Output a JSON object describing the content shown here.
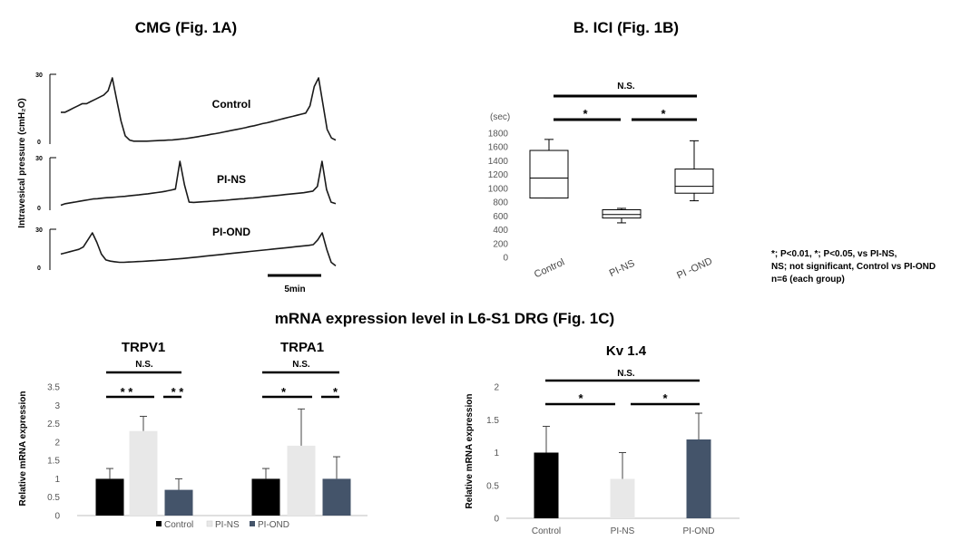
{
  "page_title": "mRNA expression level in  L6-S1 DRG (Fig. 1C)",
  "chart_data": [
    {
      "id": "cmg",
      "type": "line",
      "title": "CMG (Fig. 1A)",
      "ylabel": "Intravesical pressure (cmH₂O)",
      "scale_label": "5min",
      "series": [
        {
          "name": "Control",
          "ymax_label": "30",
          "ymin_label": "0",
          "y": [
            14,
            14,
            15,
            16,
            17,
            18,
            18,
            19,
            20,
            21,
            22,
            24,
            30,
            20,
            10,
            3,
            1,
            0.5,
            0.5,
            0.5,
            0.5,
            0.6,
            0.7,
            0.8,
            0.9,
            1,
            1.1,
            1.3,
            1.5,
            1.7,
            2,
            2.3,
            2.6,
            3,
            3.3,
            3.7,
            4,
            4.4,
            4.8,
            5.2,
            5.6,
            6,
            6.4,
            6.8,
            7.3,
            7.7,
            8.2,
            8.7,
            9.1,
            9.6,
            10.1,
            10.6,
            11.1,
            11.6,
            12.1,
            12.6,
            13.1,
            13.6,
            17,
            26,
            30,
            18,
            6,
            2,
            1
          ]
        },
        {
          "name": "PI-NS",
          "ymax_label": "30",
          "ymin_label": "0",
          "y": [
            2,
            3,
            3.5,
            4,
            4.5,
            5,
            5.5,
            6,
            6.2,
            6.5,
            6.8,
            7,
            7.2,
            7.5,
            7.7,
            8,
            8.3,
            8.6,
            9,
            9.3,
            9.7,
            10.1,
            10.5,
            11,
            11.6,
            12.3,
            30,
            15,
            4,
            3.8,
            4,
            4.2,
            4.4,
            4.6,
            4.8,
            5,
            5.2,
            5.5,
            5.7,
            6,
            6.2,
            6.5,
            6.7,
            7,
            7.3,
            7.6,
            7.9,
            8.2,
            8.5,
            8.8,
            9.1,
            9.4,
            9.7,
            10,
            10.5,
            11,
            14,
            30,
            12,
            4,
            3
          ]
        },
        {
          "name": "PI-OND",
          "ymax_label": "30",
          "ymin_label": "0",
          "y": [
            12,
            13,
            14,
            15,
            16,
            18,
            24,
            30,
            22,
            12,
            7,
            6,
            5.5,
            5,
            5,
            5.2,
            5.4,
            5.6,
            5.8,
            6,
            6.3,
            6.5,
            6.8,
            7,
            7.3,
            7.6,
            7.9,
            8.2,
            8.6,
            9,
            9.4,
            9.8,
            10.2,
            10.6,
            11,
            11.4,
            11.8,
            12.2,
            12.6,
            13,
            13.4,
            13.8,
            14.2,
            14.6,
            15,
            15.4,
            15.8,
            16.2,
            16.6,
            17,
            17.4,
            17.8,
            18.2,
            18.6,
            19,
            19.4,
            20,
            24,
            30,
            16,
            5,
            2
          ]
        }
      ]
    },
    {
      "id": "ici",
      "type": "boxplot",
      "title": "B. ICI (Fig. 1B)",
      "ylabel": "(sec)",
      "ylim": [
        0,
        1800
      ],
      "yticks": [
        "0",
        "200",
        "400",
        "600",
        "800",
        "1000",
        "1200",
        "1400",
        "1600",
        "1800"
      ],
      "categories": [
        "Control",
        "PI-NS",
        "PI -OND"
      ],
      "boxes": [
        {
          "min": 860,
          "q1": 860,
          "median": 1150,
          "q3": 1550,
          "max": 1710
        },
        {
          "min": 500,
          "q1": 570,
          "median": 620,
          "q3": 690,
          "max": 710
        },
        {
          "min": 820,
          "q1": 930,
          "median": 1030,
          "q3": 1280,
          "max": 1690
        }
      ],
      "significance": [
        {
          "label": "N.S."
        },
        {
          "label": "*"
        },
        {
          "label": "*"
        }
      ],
      "notes": [
        "*; P<0.01, *; P<0.05, vs PI-NS,",
        "NS; not significant, Control vs PI-OND",
        "n=6 (each group)"
      ]
    },
    {
      "id": "trp",
      "type": "bar",
      "ylabel": "Relative mRNA expression",
      "ylim": [
        0,
        3.5
      ],
      "yticks": [
        "0",
        "0.5",
        "1",
        "1.5",
        "2",
        "2.5",
        "3",
        "3.5"
      ],
      "groups": [
        {
          "name": "TRPV1",
          "values": [
            1.0,
            2.3,
            0.7
          ],
          "errors": [
            0.28,
            0.4,
            0.3
          ],
          "significance": [
            {
              "label": "N.S."
            },
            {
              "label": "* *"
            },
            {
              "label": "* *"
            }
          ]
        },
        {
          "name": "TRPA1",
          "values": [
            1.0,
            1.9,
            1.0
          ],
          "errors": [
            0.28,
            1.0,
            0.6
          ],
          "significance": [
            {
              "label": "N.S."
            },
            {
              "label": "*"
            },
            {
              "label": "*"
            }
          ]
        }
      ],
      "legend": [
        "Control",
        "PI-NS",
        "PI-OND"
      ]
    },
    {
      "id": "kv",
      "type": "bar",
      "title": "Kv 1.4",
      "ylabel": "Relative mRNA expression",
      "ylim": [
        0,
        2
      ],
      "yticks": [
        "0",
        "0.5",
        "1",
        "1.5",
        "2"
      ],
      "categories": [
        "Control",
        "PI-NS",
        "PI-OND"
      ],
      "values": [
        1.0,
        0.6,
        1.2
      ],
      "errors": [
        0.4,
        0.4,
        0.4
      ],
      "significance": [
        {
          "label": "N.S."
        },
        {
          "label": "*"
        },
        {
          "label": "*"
        }
      ]
    }
  ],
  "colors": {
    "control": "#000000",
    "pi_ns": "#e8e8e8",
    "pi_ond": "#44546a",
    "axis": "#bfbfbf",
    "trace": "#1a1a1a"
  }
}
